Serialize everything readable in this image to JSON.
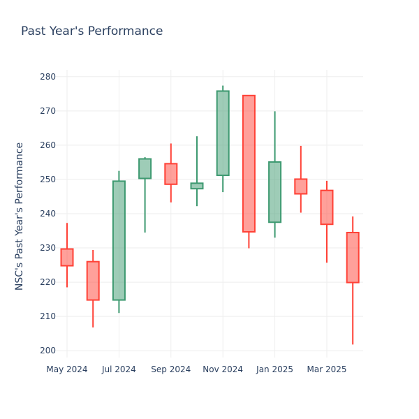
{
  "chart_data": {
    "type": "candlestick",
    "title": "Past Year's Performance",
    "xlabel": "",
    "ylabel": "NSC's Past Year's Performance",
    "ylim": [
      198,
      282
    ],
    "yticks": [
      200,
      210,
      220,
      230,
      240,
      250,
      260,
      270,
      280
    ],
    "xticks": [
      "May 2024",
      "Jul 2024",
      "Sep 2024",
      "Nov 2024",
      "Jan 2025",
      "Mar 2025"
    ],
    "colors": {
      "increasing": "#3d9970",
      "decreasing": "#ff4136"
    },
    "candles": [
      {
        "month": "2024-05",
        "open": 229.7,
        "high": 237.3,
        "low": 218.5,
        "close": 224.8
      },
      {
        "month": "2024-06",
        "open": 226.0,
        "high": 229.4,
        "low": 206.8,
        "close": 214.8
      },
      {
        "month": "2024-07",
        "open": 214.8,
        "high": 252.5,
        "low": 211.0,
        "close": 249.5
      },
      {
        "month": "2024-08",
        "open": 250.3,
        "high": 256.5,
        "low": 234.5,
        "close": 256.0
      },
      {
        "month": "2024-09",
        "open": 254.6,
        "high": 260.5,
        "low": 243.3,
        "close": 248.6
      },
      {
        "month": "2024-10",
        "open": 247.3,
        "high": 262.6,
        "low": 242.2,
        "close": 248.9
      },
      {
        "month": "2024-11",
        "open": 251.2,
        "high": 277.4,
        "low": 246.3,
        "close": 275.8
      },
      {
        "month": "2024-12",
        "open": 274.5,
        "high": 274.5,
        "low": 229.9,
        "close": 234.7
      },
      {
        "month": "2025-01",
        "open": 237.5,
        "high": 269.9,
        "low": 233.0,
        "close": 255.1
      },
      {
        "month": "2025-02",
        "open": 250.1,
        "high": 259.8,
        "low": 240.3,
        "close": 245.8
      },
      {
        "month": "2025-03",
        "open": 246.8,
        "high": 249.6,
        "low": 225.7,
        "close": 236.9
      },
      {
        "month": "2025-04",
        "open": 234.5,
        "high": 239.2,
        "low": 201.8,
        "close": 219.9
      }
    ]
  }
}
